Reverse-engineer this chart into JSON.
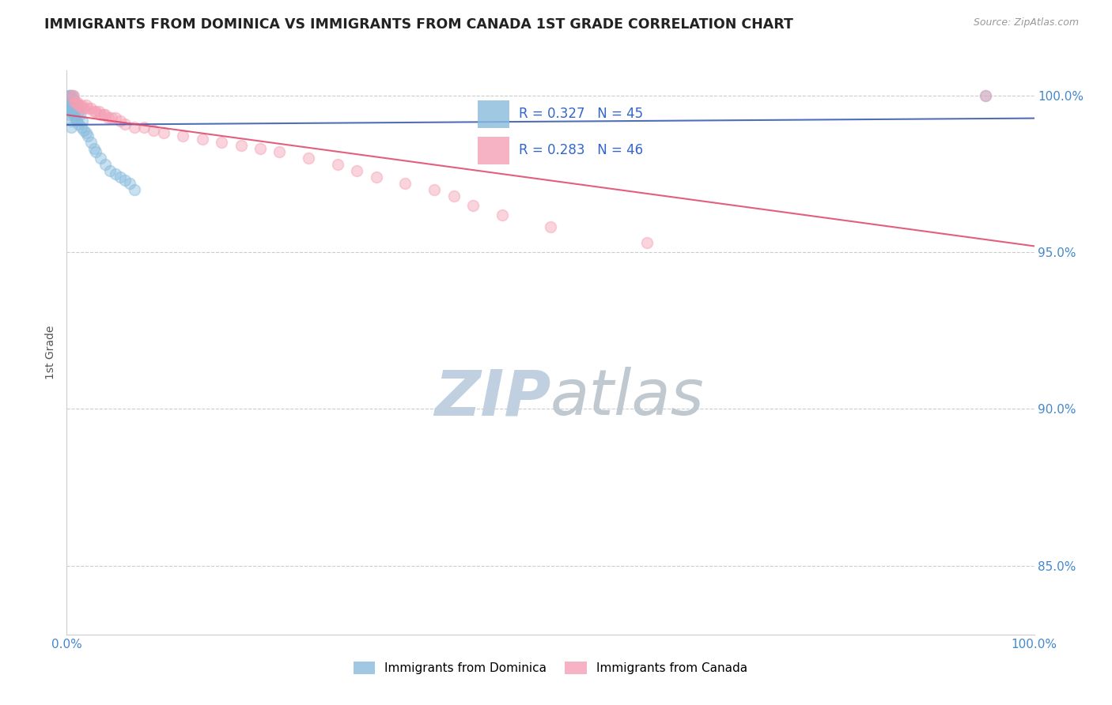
{
  "title": "IMMIGRANTS FROM DOMINICA VS IMMIGRANTS FROM CANADA 1ST GRADE CORRELATION CHART",
  "source": "Source: ZipAtlas.com",
  "ylabel": "1st Grade",
  "series1_label": "Immigrants from Dominica",
  "series2_label": "Immigrants from Canada",
  "series1_color": "#88bbdd",
  "series2_color": "#f4a0b5",
  "series1_R": 0.327,
  "series1_N": 45,
  "series2_R": 0.283,
  "series2_N": 46,
  "series1_line_color": "#3355aa",
  "series2_line_color": "#dd4466",
  "xlim": [
    0.0,
    1.0
  ],
  "ylim": [
    0.828,
    1.008
  ],
  "x_ticks": [
    0.0,
    0.1,
    0.2,
    0.3,
    0.4,
    0.5,
    0.6,
    0.7,
    0.8,
    0.9,
    1.0
  ],
  "x_tick_labels": [
    "0.0%",
    "",
    "",
    "",
    "",
    "",
    "",
    "",
    "",
    "",
    "100.0%"
  ],
  "y_ticks": [
    0.85,
    0.9,
    0.95,
    1.0
  ],
  "y_tick_labels": [
    "85.0%",
    "90.0%",
    "95.0%",
    "100.0%"
  ],
  "watermark_zip": "ZIP",
  "watermark_atlas": "atlas",
  "watermark_color_zip": "#c0d0e0",
  "watermark_color_atlas": "#c0c8d0",
  "background_color": "#ffffff",
  "grid_color": "#cccccc",
  "series1_x": [
    0.002,
    0.002,
    0.002,
    0.003,
    0.003,
    0.003,
    0.003,
    0.004,
    0.004,
    0.004,
    0.005,
    0.005,
    0.005,
    0.005,
    0.005,
    0.006,
    0.006,
    0.007,
    0.007,
    0.008,
    0.008,
    0.009,
    0.009,
    0.01,
    0.01,
    0.012,
    0.012,
    0.014,
    0.015,
    0.016,
    0.018,
    0.02,
    0.022,
    0.025,
    0.028,
    0.03,
    0.035,
    0.04,
    0.045,
    0.05,
    0.055,
    0.06,
    0.065,
    0.07,
    0.95
  ],
  "series1_y": [
    1.0,
    0.998,
    0.996,
    1.0,
    0.998,
    0.996,
    0.994,
    1.0,
    0.998,
    0.995,
    1.0,
    0.998,
    0.995,
    0.992,
    0.99,
    1.0,
    0.997,
    0.998,
    0.995,
    0.998,
    0.994,
    0.997,
    0.993,
    0.996,
    0.992,
    0.995,
    0.991,
    0.994,
    0.99,
    0.992,
    0.989,
    0.988,
    0.987,
    0.985,
    0.983,
    0.982,
    0.98,
    0.978,
    0.976,
    0.975,
    0.974,
    0.973,
    0.972,
    0.97,
    1.0
  ],
  "series2_x": [
    0.005,
    0.007,
    0.008,
    0.009,
    0.01,
    0.012,
    0.013,
    0.015,
    0.016,
    0.018,
    0.02,
    0.022,
    0.025,
    0.028,
    0.03,
    0.033,
    0.035,
    0.038,
    0.04,
    0.043,
    0.046,
    0.05,
    0.055,
    0.06,
    0.07,
    0.08,
    0.09,
    0.1,
    0.12,
    0.14,
    0.16,
    0.18,
    0.2,
    0.22,
    0.25,
    0.28,
    0.3,
    0.32,
    0.35,
    0.38,
    0.4,
    0.42,
    0.45,
    0.5,
    0.6,
    0.95
  ],
  "series2_y": [
    1.0,
    1.0,
    0.998,
    0.998,
    0.998,
    0.997,
    0.997,
    0.997,
    0.996,
    0.996,
    0.997,
    0.996,
    0.996,
    0.995,
    0.995,
    0.995,
    0.994,
    0.994,
    0.994,
    0.993,
    0.993,
    0.993,
    0.992,
    0.991,
    0.99,
    0.99,
    0.989,
    0.988,
    0.987,
    0.986,
    0.985,
    0.984,
    0.983,
    0.982,
    0.98,
    0.978,
    0.976,
    0.974,
    0.972,
    0.97,
    0.968,
    0.965,
    0.962,
    0.958,
    0.953,
    1.0
  ],
  "marker_size": 100,
  "marker_alpha": 0.45,
  "marker_linewidth": 1.2
}
